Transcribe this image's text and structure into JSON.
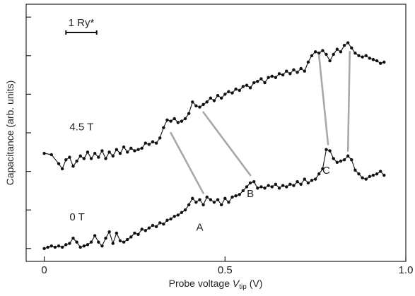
{
  "chart_data": {
    "type": "scatter",
    "title": "",
    "xlabel": "Probe voltage ",
    "xlabel_symbol": "V",
    "xlabel_subscript": "tip",
    "xlabel_unit": " (V)",
    "ylabel": "Capacitance (arb. units)",
    "xlim": [
      -0.05,
      1.0
    ],
    "ylim": [
      0,
      1
    ],
    "x_ticks": [
      {
        "value": 0,
        "label": "0"
      },
      {
        "value": 0.5,
        "label": "0.5"
      },
      {
        "value": 1.0,
        "label": "1.0"
      }
    ],
    "y_ticks": [
      0.05,
      0.2,
      0.35,
      0.5,
      0.65,
      0.8,
      0.95
    ],
    "scale_bar": {
      "label": "1 Ry*",
      "x_start": 0.06,
      "x_end": 0.145,
      "y": 0.89
    },
    "series": [
      {
        "name": "4.5 T",
        "label_pos": {
          "x": 0.07,
          "y": 0.51
        },
        "points": [
          [
            0.0,
            0.42
          ],
          [
            0.02,
            0.415
          ],
          [
            0.04,
            0.38
          ],
          [
            0.05,
            0.36
          ],
          [
            0.06,
            0.395
          ],
          [
            0.07,
            0.405
          ],
          [
            0.08,
            0.37
          ],
          [
            0.09,
            0.39
          ],
          [
            0.1,
            0.41
          ],
          [
            0.11,
            0.4
          ],
          [
            0.12,
            0.425
          ],
          [
            0.13,
            0.4
          ],
          [
            0.14,
            0.42
          ],
          [
            0.15,
            0.405
          ],
          [
            0.16,
            0.43
          ],
          [
            0.17,
            0.4
          ],
          [
            0.18,
            0.425
          ],
          [
            0.19,
            0.41
          ],
          [
            0.2,
            0.435
          ],
          [
            0.21,
            0.42
          ],
          [
            0.22,
            0.445
          ],
          [
            0.23,
            0.425
          ],
          [
            0.24,
            0.44
          ],
          [
            0.25,
            0.43
          ],
          [
            0.26,
            0.435
          ],
          [
            0.27,
            0.44
          ],
          [
            0.28,
            0.46
          ],
          [
            0.29,
            0.455
          ],
          [
            0.3,
            0.465
          ],
          [
            0.31,
            0.46
          ],
          [
            0.32,
            0.48
          ],
          [
            0.33,
            0.52
          ],
          [
            0.34,
            0.55
          ],
          [
            0.35,
            0.545
          ],
          [
            0.36,
            0.555
          ],
          [
            0.37,
            0.54
          ],
          [
            0.38,
            0.545
          ],
          [
            0.39,
            0.555
          ],
          [
            0.4,
            0.575
          ],
          [
            0.41,
            0.62
          ],
          [
            0.42,
            0.605
          ],
          [
            0.43,
            0.6
          ],
          [
            0.44,
            0.61
          ],
          [
            0.45,
            0.62
          ],
          [
            0.46,
            0.635
          ],
          [
            0.47,
            0.625
          ],
          [
            0.48,
            0.645
          ],
          [
            0.49,
            0.635
          ],
          [
            0.5,
            0.65
          ],
          [
            0.51,
            0.66
          ],
          [
            0.52,
            0.655
          ],
          [
            0.53,
            0.67
          ],
          [
            0.54,
            0.665
          ],
          [
            0.55,
            0.68
          ],
          [
            0.56,
            0.685
          ],
          [
            0.57,
            0.675
          ],
          [
            0.58,
            0.695
          ],
          [
            0.59,
            0.7
          ],
          [
            0.6,
            0.71
          ],
          [
            0.61,
            0.695
          ],
          [
            0.62,
            0.715
          ],
          [
            0.63,
            0.72
          ],
          [
            0.64,
            0.715
          ],
          [
            0.65,
            0.73
          ],
          [
            0.66,
            0.725
          ],
          [
            0.67,
            0.74
          ],
          [
            0.68,
            0.73
          ],
          [
            0.69,
            0.745
          ],
          [
            0.7,
            0.735
          ],
          [
            0.71,
            0.75
          ],
          [
            0.72,
            0.74
          ],
          [
            0.73,
            0.775
          ],
          [
            0.74,
            0.8
          ],
          [
            0.75,
            0.815
          ],
          [
            0.76,
            0.81
          ],
          [
            0.77,
            0.82
          ],
          [
            0.78,
            0.805
          ],
          [
            0.79,
            0.78
          ],
          [
            0.8,
            0.805
          ],
          [
            0.81,
            0.825
          ],
          [
            0.82,
            0.815
          ],
          [
            0.83,
            0.84
          ],
          [
            0.84,
            0.85
          ],
          [
            0.85,
            0.83
          ],
          [
            0.86,
            0.81
          ],
          [
            0.87,
            0.8
          ],
          [
            0.88,
            0.795
          ],
          [
            0.89,
            0.8
          ],
          [
            0.9,
            0.79
          ],
          [
            0.91,
            0.785
          ],
          [
            0.92,
            0.78
          ],
          [
            0.93,
            0.77
          ],
          [
            0.94,
            0.775
          ]
        ]
      },
      {
        "name": "0 T",
        "label_pos": {
          "x": 0.07,
          "y": 0.16
        },
        "points": [
          [
            0.0,
            0.05
          ],
          [
            0.01,
            0.055
          ],
          [
            0.02,
            0.06
          ],
          [
            0.03,
            0.055
          ],
          [
            0.04,
            0.06
          ],
          [
            0.05,
            0.055
          ],
          [
            0.06,
            0.065
          ],
          [
            0.07,
            0.07
          ],
          [
            0.08,
            0.09
          ],
          [
            0.09,
            0.075
          ],
          [
            0.1,
            0.055
          ],
          [
            0.11,
            0.06
          ],
          [
            0.12,
            0.065
          ],
          [
            0.13,
            0.075
          ],
          [
            0.14,
            0.1
          ],
          [
            0.15,
            0.075
          ],
          [
            0.16,
            0.06
          ],
          [
            0.17,
            0.09
          ],
          [
            0.18,
            0.115
          ],
          [
            0.19,
            0.07
          ],
          [
            0.2,
            0.11
          ],
          [
            0.21,
            0.08
          ],
          [
            0.22,
            0.075
          ],
          [
            0.23,
            0.085
          ],
          [
            0.24,
            0.095
          ],
          [
            0.25,
            0.11
          ],
          [
            0.26,
            0.105
          ],
          [
            0.27,
            0.125
          ],
          [
            0.28,
            0.12
          ],
          [
            0.29,
            0.13
          ],
          [
            0.3,
            0.14
          ],
          [
            0.31,
            0.135
          ],
          [
            0.32,
            0.15
          ],
          [
            0.33,
            0.145
          ],
          [
            0.34,
            0.16
          ],
          [
            0.35,
            0.165
          ],
          [
            0.36,
            0.175
          ],
          [
            0.37,
            0.18
          ],
          [
            0.38,
            0.19
          ],
          [
            0.39,
            0.2
          ],
          [
            0.4,
            0.22
          ],
          [
            0.41,
            0.245
          ],
          [
            0.42,
            0.23
          ],
          [
            0.43,
            0.24
          ],
          [
            0.44,
            0.22
          ],
          [
            0.45,
            0.25
          ],
          [
            0.46,
            0.24
          ],
          [
            0.47,
            0.23
          ],
          [
            0.48,
            0.24
          ],
          [
            0.49,
            0.22
          ],
          [
            0.5,
            0.245
          ],
          [
            0.51,
            0.23
          ],
          [
            0.52,
            0.25
          ],
          [
            0.53,
            0.255
          ],
          [
            0.54,
            0.26
          ],
          [
            0.55,
            0.275
          ],
          [
            0.56,
            0.29
          ],
          [
            0.57,
            0.305
          ],
          [
            0.58,
            0.31
          ],
          [
            0.59,
            0.285
          ],
          [
            0.6,
            0.29
          ],
          [
            0.61,
            0.285
          ],
          [
            0.62,
            0.295
          ],
          [
            0.63,
            0.29
          ],
          [
            0.64,
            0.3
          ],
          [
            0.65,
            0.285
          ],
          [
            0.66,
            0.295
          ],
          [
            0.67,
            0.29
          ],
          [
            0.68,
            0.3
          ],
          [
            0.69,
            0.295
          ],
          [
            0.7,
            0.31
          ],
          [
            0.71,
            0.3
          ],
          [
            0.72,
            0.32
          ],
          [
            0.73,
            0.305
          ],
          [
            0.74,
            0.315
          ],
          [
            0.75,
            0.32
          ],
          [
            0.76,
            0.34
          ],
          [
            0.77,
            0.36
          ],
          [
            0.78,
            0.435
          ],
          [
            0.79,
            0.43
          ],
          [
            0.8,
            0.4
          ],
          [
            0.81,
            0.385
          ],
          [
            0.82,
            0.39
          ],
          [
            0.83,
            0.395
          ],
          [
            0.84,
            0.41
          ],
          [
            0.85,
            0.395
          ],
          [
            0.86,
            0.355
          ],
          [
            0.87,
            0.34
          ],
          [
            0.88,
            0.325
          ],
          [
            0.89,
            0.32
          ],
          [
            0.9,
            0.33
          ],
          [
            0.91,
            0.335
          ],
          [
            0.92,
            0.34
          ],
          [
            0.93,
            0.35
          ],
          [
            0.94,
            0.335
          ]
        ]
      }
    ],
    "point_labels": [
      {
        "text": "A",
        "x": 0.43,
        "y": 0.12
      },
      {
        "text": "B",
        "x": 0.57,
        "y": 0.25
      },
      {
        "text": "C",
        "x": 0.78,
        "y": 0.34
      }
    ],
    "connectors": [
      {
        "x1": 0.35,
        "y1": 0.5,
        "x2": 0.44,
        "y2": 0.265
      },
      {
        "x1": 0.44,
        "y1": 0.58,
        "x2": 0.57,
        "y2": 0.335
      },
      {
        "x1": 0.76,
        "y1": 0.8,
        "x2": 0.785,
        "y2": 0.455
      },
      {
        "x1": 0.845,
        "y1": 0.815,
        "x2": 0.84,
        "y2": 0.43
      }
    ],
    "grid": false,
    "legend": "none"
  }
}
